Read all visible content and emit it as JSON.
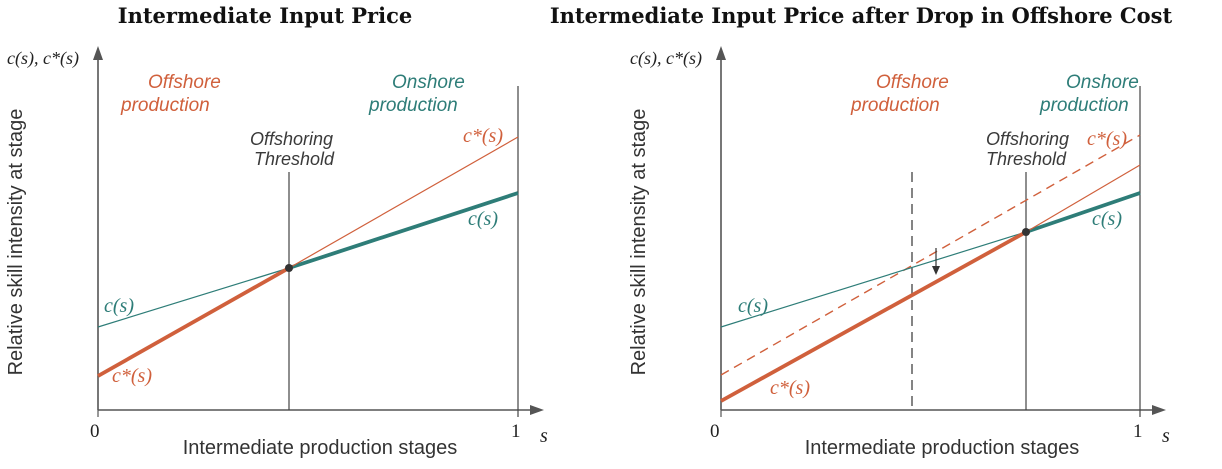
{
  "colors": {
    "offshore": "#d0603c",
    "onshore": "#2e7d78",
    "axis": "#555555",
    "text": "#333333"
  },
  "left": {
    "title": "Intermediate Input Price",
    "y_axis_label": "c(s), c*(s)",
    "side_label": "Relative skill intensity at stage",
    "offshore_label_1": "Offshore",
    "offshore_label_2": "production",
    "onshore_label_1": "Onshore",
    "onshore_label_2": "production",
    "threshold_label_1": "Offshoring",
    "threshold_label_2": "Threshold",
    "c_star_top": "c*(s)",
    "c_right": "c(s)",
    "c_left": "c(s)",
    "c_star_bottom": "c*(s)",
    "tick_0": "0",
    "tick_1": "1",
    "x_axis_label": "Intermediate production stages",
    "s_label": "s"
  },
  "right": {
    "title": "Intermediate Input Price after Drop in Offshore Cost",
    "y_axis_label": "c(s), c*(s)",
    "side_label": "Relative skill intensity at stage",
    "offshore_label_1": "Offshore",
    "offshore_label_2": "production",
    "onshore_label_1": "Onshore",
    "onshore_label_2": "production",
    "threshold_label_1": "Offshoring",
    "threshold_label_2": "Threshold",
    "c_star_top": "c*(s)",
    "c_right": "c(s)",
    "c_left": "c(s)",
    "c_star_bottom": "c*(s)",
    "tick_0": "0",
    "tick_1": "1",
    "x_axis_label": "Intermediate production stages",
    "s_label": "s"
  }
}
